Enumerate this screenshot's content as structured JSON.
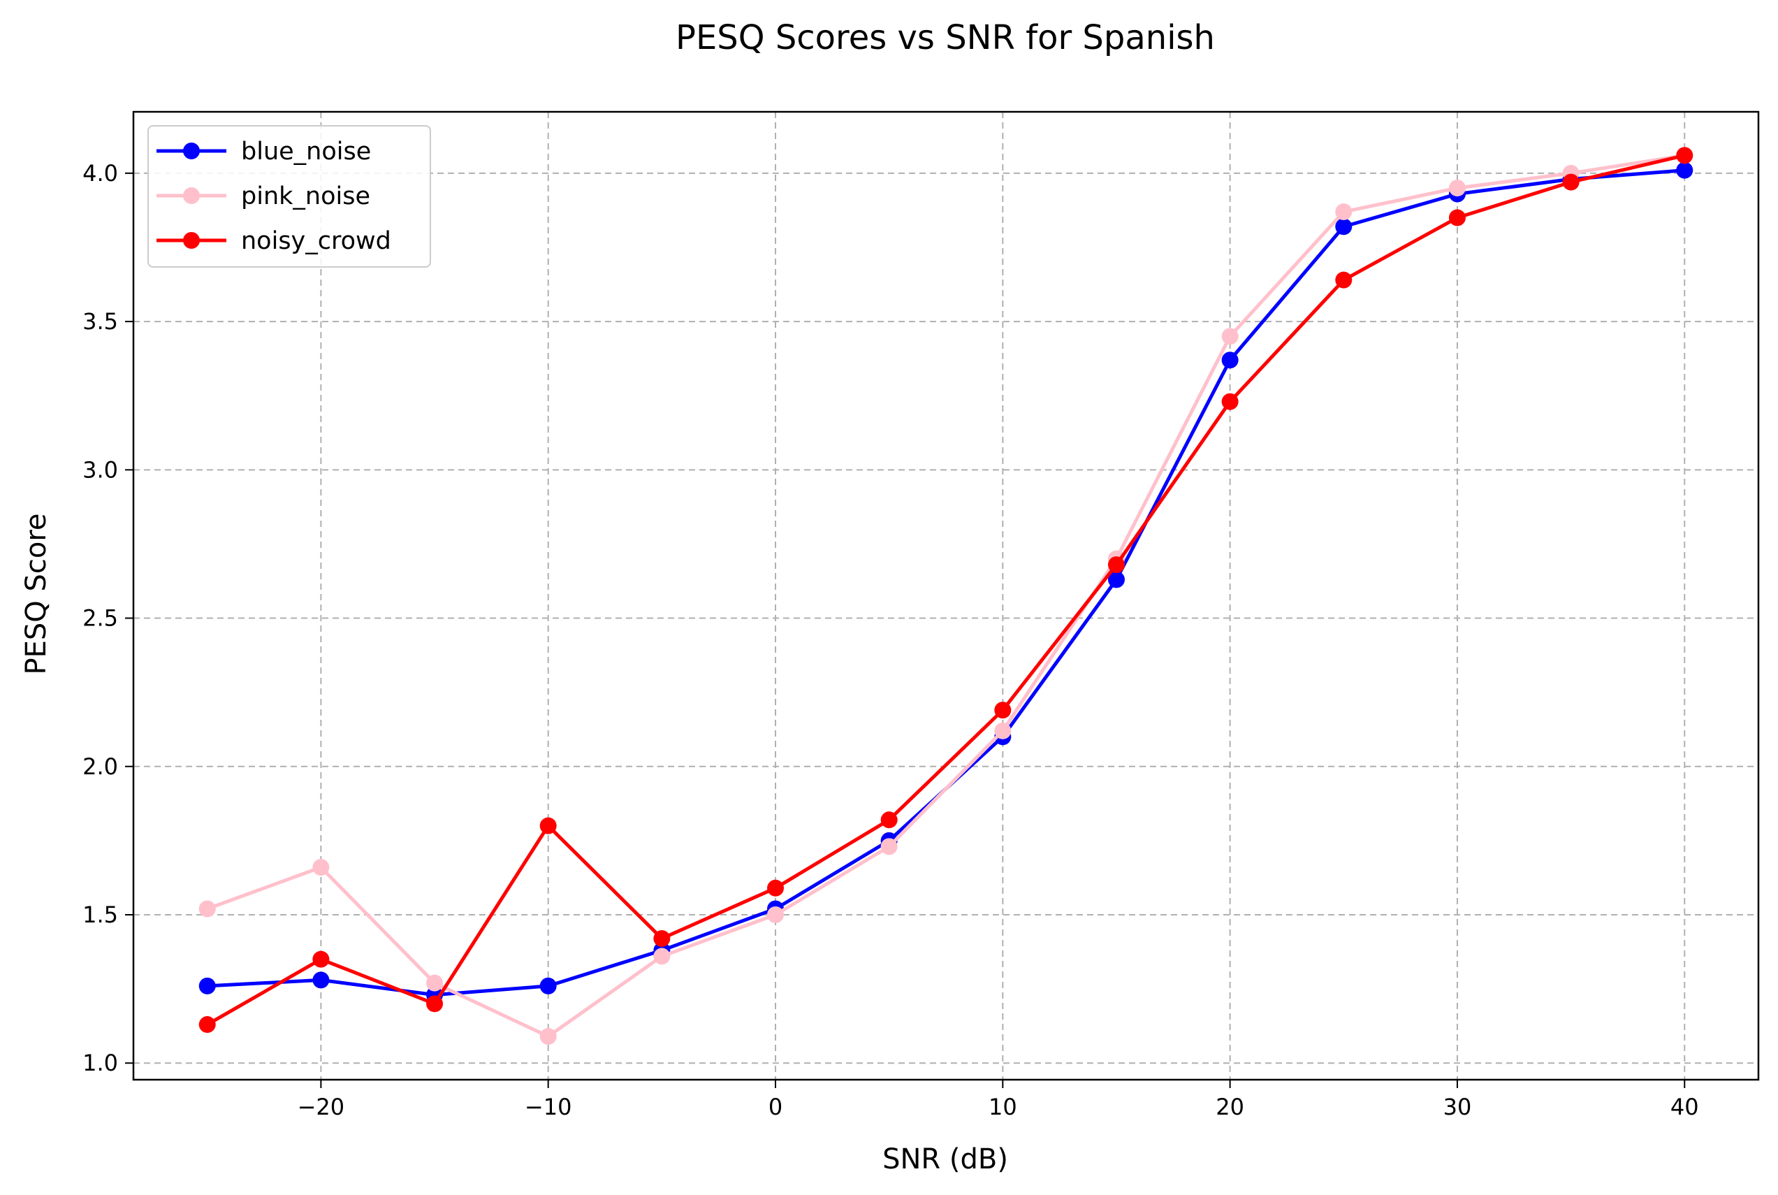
{
  "chart_data": {
    "type": "line",
    "title": "PESQ Scores vs SNR for Spanish",
    "xlabel": "SNR (dB)",
    "ylabel": "PESQ Score",
    "x": [
      -25,
      -20,
      -15,
      -10,
      -5,
      0,
      5,
      10,
      15,
      20,
      25,
      30,
      35,
      40
    ],
    "xlim": [
      -28.25,
      43.25
    ],
    "ylim": [
      0.944,
      4.207
    ],
    "xticks": [
      -20,
      -10,
      0,
      10,
      20,
      30,
      40
    ],
    "xtick_labels": [
      "−20",
      "−10",
      "0",
      "10",
      "20",
      "30",
      "40"
    ],
    "yticks": [
      1.0,
      1.5,
      2.0,
      2.5,
      3.0,
      3.5,
      4.0
    ],
    "ytick_labels": [
      "1.0",
      "1.5",
      "2.0",
      "2.5",
      "3.0",
      "3.5",
      "4.0"
    ],
    "grid": true,
    "legend_position": "top-left",
    "series": [
      {
        "name": "blue_noise",
        "color": "#0000ff",
        "values": [
          1.26,
          1.28,
          1.23,
          1.26,
          1.38,
          1.52,
          1.75,
          2.1,
          2.63,
          3.37,
          3.82,
          3.93,
          3.98,
          4.01
        ]
      },
      {
        "name": "pink_noise",
        "color": "#ffc0cb",
        "values": [
          1.52,
          1.66,
          1.27,
          1.09,
          1.36,
          1.5,
          1.73,
          2.12,
          2.7,
          3.45,
          3.87,
          3.95,
          4.0,
          4.06
        ]
      },
      {
        "name": "noisy_crowd",
        "color": "#ff0000",
        "values": [
          1.13,
          1.35,
          1.2,
          1.8,
          1.42,
          1.59,
          1.82,
          2.19,
          2.68,
          3.23,
          3.64,
          3.85,
          3.97,
          4.06
        ]
      }
    ]
  }
}
